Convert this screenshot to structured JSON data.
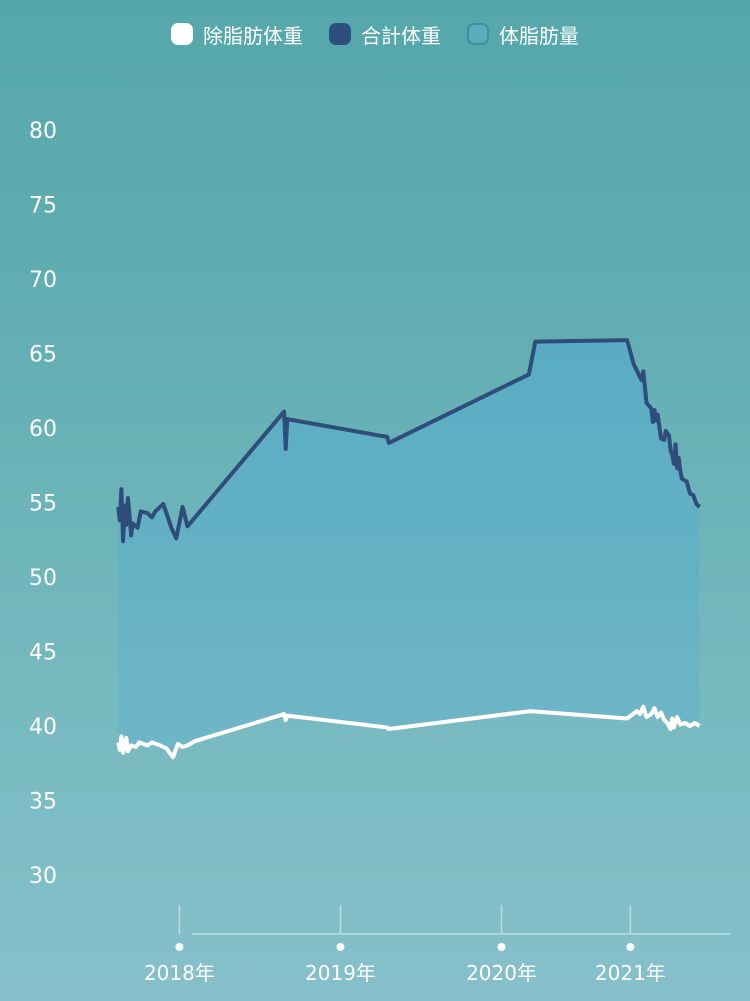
{
  "legend": [
    {
      "label": "除脂肪体重",
      "color": "#ffffff"
    },
    {
      "label": "合計体重",
      "color": "#2d4f7d"
    },
    {
      "label": "体脂肪量",
      "color": "#5aaebc"
    }
  ],
  "colors": {
    "total_line": "#2f4d7a",
    "lean_line": "#ffffff",
    "fat_fill": "#5eaec6",
    "axis": "#b9dde1"
  },
  "chart_data": {
    "type": "area",
    "y_ticks": [
      80,
      75,
      70,
      65,
      60,
      55,
      50,
      45,
      40,
      35,
      30
    ],
    "ylim": [
      30,
      80
    ],
    "x_ticks": [
      {
        "label": "2018年",
        "x": 2018.0
      },
      {
        "label": "2019年",
        "x": 2019.0
      },
      {
        "label": "2020年",
        "x": 2020.0
      },
      {
        "label": "2021年",
        "x": 2020.8
      }
    ],
    "xlim": [
      2017.6,
      2021.4
    ],
    "series": [
      {
        "name": "合計体重",
        "points": [
          [
            2017.62,
            54.7
          ],
          [
            2017.63,
            53.8
          ],
          [
            2017.64,
            55.9
          ],
          [
            2017.65,
            52.4
          ],
          [
            2017.66,
            54.8
          ],
          [
            2017.67,
            53.5
          ],
          [
            2017.68,
            55.3
          ],
          [
            2017.69,
            54.2
          ],
          [
            2017.7,
            52.8
          ],
          [
            2017.71,
            53.6
          ],
          [
            2017.74,
            53.3
          ],
          [
            2017.76,
            54.4
          ],
          [
            2017.8,
            54.3
          ],
          [
            2017.83,
            54.0
          ],
          [
            2017.85,
            54.4
          ],
          [
            2017.9,
            54.9
          ],
          [
            2017.95,
            53.3
          ],
          [
            2017.98,
            52.6
          ],
          [
            2018.02,
            54.7
          ],
          [
            2018.05,
            53.4
          ],
          [
            2018.65,
            61.1
          ],
          [
            2018.66,
            58.6
          ],
          [
            2018.67,
            60.6
          ],
          [
            2019.29,
            59.4
          ],
          [
            2019.3,
            59.0
          ],
          [
            2020.17,
            63.6
          ],
          [
            2020.21,
            65.8
          ],
          [
            2020.78,
            65.9
          ],
          [
            2020.82,
            64.3
          ],
          [
            2020.87,
            63.2
          ],
          [
            2020.88,
            63.8
          ],
          [
            2020.9,
            61.7
          ],
          [
            2020.93,
            61.3
          ],
          [
            2020.94,
            60.4
          ],
          [
            2020.95,
            61.2
          ],
          [
            2020.96,
            60.5
          ],
          [
            2020.97,
            60.9
          ],
          [
            2020.99,
            59.3
          ],
          [
            2021.01,
            59.2
          ],
          [
            2021.02,
            59.8
          ],
          [
            2021.04,
            59.5
          ],
          [
            2021.05,
            58.5
          ],
          [
            2021.06,
            58.2
          ],
          [
            2021.07,
            57.6
          ],
          [
            2021.08,
            58.9
          ],
          [
            2021.09,
            57.3
          ],
          [
            2021.1,
            58.0
          ],
          [
            2021.11,
            57.1
          ],
          [
            2021.12,
            56.6
          ],
          [
            2021.15,
            56.4
          ],
          [
            2021.17,
            55.6
          ],
          [
            2021.19,
            55.5
          ],
          [
            2021.21,
            54.9
          ],
          [
            2021.23,
            54.7
          ]
        ]
      },
      {
        "name": "除脂肪体重",
        "points": [
          [
            2017.62,
            38.9
          ],
          [
            2017.63,
            38.4
          ],
          [
            2017.64,
            39.3
          ],
          [
            2017.65,
            38.2
          ],
          [
            2017.66,
            38.8
          ],
          [
            2017.67,
            39.2
          ],
          [
            2017.68,
            38.3
          ],
          [
            2017.7,
            38.7
          ],
          [
            2017.73,
            38.6
          ],
          [
            2017.75,
            38.9
          ],
          [
            2017.8,
            38.7
          ],
          [
            2017.83,
            38.9
          ],
          [
            2017.88,
            38.7
          ],
          [
            2017.92,
            38.5
          ],
          [
            2017.96,
            37.9
          ],
          [
            2017.99,
            38.8
          ],
          [
            2018.02,
            38.6
          ],
          [
            2018.05,
            38.7
          ],
          [
            2018.1,
            39.0
          ],
          [
            2018.65,
            40.8
          ],
          [
            2018.66,
            40.4
          ],
          [
            2018.67,
            40.7
          ],
          [
            2019.29,
            39.9
          ],
          [
            2019.3,
            39.8
          ],
          [
            2020.18,
            41.0
          ],
          [
            2020.78,
            40.5
          ],
          [
            2020.84,
            41.0
          ],
          [
            2020.86,
            40.8
          ],
          [
            2020.88,
            41.3
          ],
          [
            2020.9,
            40.6
          ],
          [
            2020.93,
            40.8
          ],
          [
            2020.95,
            41.2
          ],
          [
            2020.97,
            40.6
          ],
          [
            2020.99,
            40.9
          ],
          [
            2021.01,
            40.4
          ],
          [
            2021.03,
            40.2
          ],
          [
            2021.05,
            39.8
          ],
          [
            2021.06,
            40.5
          ],
          [
            2021.07,
            39.9
          ],
          [
            2021.09,
            40.6
          ],
          [
            2021.11,
            40.1
          ],
          [
            2021.14,
            40.2
          ],
          [
            2021.17,
            40.0
          ],
          [
            2021.2,
            40.2
          ],
          [
            2021.23,
            40.0
          ]
        ]
      }
    ],
    "fill_between": "体脂肪量",
    "grid": false,
    "legend_position": "top"
  }
}
